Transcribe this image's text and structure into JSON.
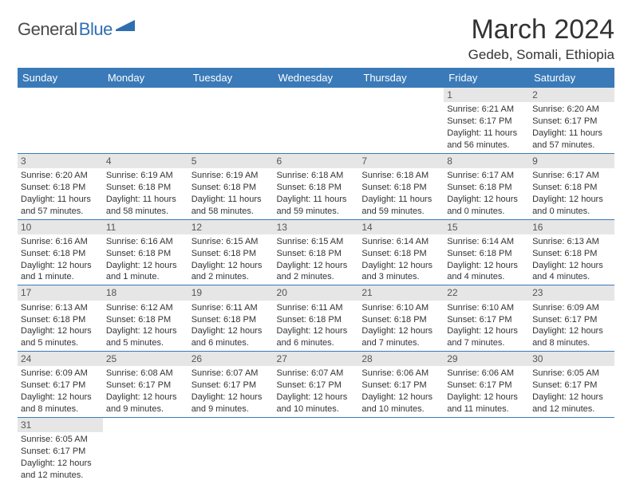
{
  "logo": {
    "text_dark": "General",
    "text_blue": "Blue",
    "icon_color": "#2f6fb0",
    "text_dark_color": "#4a4a4a"
  },
  "title": "March 2024",
  "location": "Gedeb, Somali, Ethiopia",
  "colors": {
    "header_bg": "#3a7ab8",
    "header_text": "#ffffff",
    "daynum_bg": "#e6e6e6",
    "daynum_text": "#555555",
    "cell_border": "#3a7ab8",
    "body_text": "#333333",
    "page_bg": "#ffffff"
  },
  "fonts": {
    "title_size": 34,
    "location_size": 17,
    "weekday_size": 13,
    "daynum_size": 12,
    "details_size": 11
  },
  "weekdays": [
    "Sunday",
    "Monday",
    "Tuesday",
    "Wednesday",
    "Thursday",
    "Friday",
    "Saturday"
  ],
  "weeks": [
    [
      {
        "empty": true
      },
      {
        "empty": true
      },
      {
        "empty": true
      },
      {
        "empty": true
      },
      {
        "empty": true
      },
      {
        "num": "1",
        "sunrise": "Sunrise: 6:21 AM",
        "sunset": "Sunset: 6:17 PM",
        "daylight": "Daylight: 11 hours and 56 minutes."
      },
      {
        "num": "2",
        "sunrise": "Sunrise: 6:20 AM",
        "sunset": "Sunset: 6:17 PM",
        "daylight": "Daylight: 11 hours and 57 minutes."
      }
    ],
    [
      {
        "num": "3",
        "sunrise": "Sunrise: 6:20 AM",
        "sunset": "Sunset: 6:18 PM",
        "daylight": "Daylight: 11 hours and 57 minutes."
      },
      {
        "num": "4",
        "sunrise": "Sunrise: 6:19 AM",
        "sunset": "Sunset: 6:18 PM",
        "daylight": "Daylight: 11 hours and 58 minutes."
      },
      {
        "num": "5",
        "sunrise": "Sunrise: 6:19 AM",
        "sunset": "Sunset: 6:18 PM",
        "daylight": "Daylight: 11 hours and 58 minutes."
      },
      {
        "num": "6",
        "sunrise": "Sunrise: 6:18 AM",
        "sunset": "Sunset: 6:18 PM",
        "daylight": "Daylight: 11 hours and 59 minutes."
      },
      {
        "num": "7",
        "sunrise": "Sunrise: 6:18 AM",
        "sunset": "Sunset: 6:18 PM",
        "daylight": "Daylight: 11 hours and 59 minutes."
      },
      {
        "num": "8",
        "sunrise": "Sunrise: 6:17 AM",
        "sunset": "Sunset: 6:18 PM",
        "daylight": "Daylight: 12 hours and 0 minutes."
      },
      {
        "num": "9",
        "sunrise": "Sunrise: 6:17 AM",
        "sunset": "Sunset: 6:18 PM",
        "daylight": "Daylight: 12 hours and 0 minutes."
      }
    ],
    [
      {
        "num": "10",
        "sunrise": "Sunrise: 6:16 AM",
        "sunset": "Sunset: 6:18 PM",
        "daylight": "Daylight: 12 hours and 1 minute."
      },
      {
        "num": "11",
        "sunrise": "Sunrise: 6:16 AM",
        "sunset": "Sunset: 6:18 PM",
        "daylight": "Daylight: 12 hours and 1 minute."
      },
      {
        "num": "12",
        "sunrise": "Sunrise: 6:15 AM",
        "sunset": "Sunset: 6:18 PM",
        "daylight": "Daylight: 12 hours and 2 minutes."
      },
      {
        "num": "13",
        "sunrise": "Sunrise: 6:15 AM",
        "sunset": "Sunset: 6:18 PM",
        "daylight": "Daylight: 12 hours and 2 minutes."
      },
      {
        "num": "14",
        "sunrise": "Sunrise: 6:14 AM",
        "sunset": "Sunset: 6:18 PM",
        "daylight": "Daylight: 12 hours and 3 minutes."
      },
      {
        "num": "15",
        "sunrise": "Sunrise: 6:14 AM",
        "sunset": "Sunset: 6:18 PM",
        "daylight": "Daylight: 12 hours and 4 minutes."
      },
      {
        "num": "16",
        "sunrise": "Sunrise: 6:13 AM",
        "sunset": "Sunset: 6:18 PM",
        "daylight": "Daylight: 12 hours and 4 minutes."
      }
    ],
    [
      {
        "num": "17",
        "sunrise": "Sunrise: 6:13 AM",
        "sunset": "Sunset: 6:18 PM",
        "daylight": "Daylight: 12 hours and 5 minutes."
      },
      {
        "num": "18",
        "sunrise": "Sunrise: 6:12 AM",
        "sunset": "Sunset: 6:18 PM",
        "daylight": "Daylight: 12 hours and 5 minutes."
      },
      {
        "num": "19",
        "sunrise": "Sunrise: 6:11 AM",
        "sunset": "Sunset: 6:18 PM",
        "daylight": "Daylight: 12 hours and 6 minutes."
      },
      {
        "num": "20",
        "sunrise": "Sunrise: 6:11 AM",
        "sunset": "Sunset: 6:18 PM",
        "daylight": "Daylight: 12 hours and 6 minutes."
      },
      {
        "num": "21",
        "sunrise": "Sunrise: 6:10 AM",
        "sunset": "Sunset: 6:18 PM",
        "daylight": "Daylight: 12 hours and 7 minutes."
      },
      {
        "num": "22",
        "sunrise": "Sunrise: 6:10 AM",
        "sunset": "Sunset: 6:17 PM",
        "daylight": "Daylight: 12 hours and 7 minutes."
      },
      {
        "num": "23",
        "sunrise": "Sunrise: 6:09 AM",
        "sunset": "Sunset: 6:17 PM",
        "daylight": "Daylight: 12 hours and 8 minutes."
      }
    ],
    [
      {
        "num": "24",
        "sunrise": "Sunrise: 6:09 AM",
        "sunset": "Sunset: 6:17 PM",
        "daylight": "Daylight: 12 hours and 8 minutes."
      },
      {
        "num": "25",
        "sunrise": "Sunrise: 6:08 AM",
        "sunset": "Sunset: 6:17 PM",
        "daylight": "Daylight: 12 hours and 9 minutes."
      },
      {
        "num": "26",
        "sunrise": "Sunrise: 6:07 AM",
        "sunset": "Sunset: 6:17 PM",
        "daylight": "Daylight: 12 hours and 9 minutes."
      },
      {
        "num": "27",
        "sunrise": "Sunrise: 6:07 AM",
        "sunset": "Sunset: 6:17 PM",
        "daylight": "Daylight: 12 hours and 10 minutes."
      },
      {
        "num": "28",
        "sunrise": "Sunrise: 6:06 AM",
        "sunset": "Sunset: 6:17 PM",
        "daylight": "Daylight: 12 hours and 10 minutes."
      },
      {
        "num": "29",
        "sunrise": "Sunrise: 6:06 AM",
        "sunset": "Sunset: 6:17 PM",
        "daylight": "Daylight: 12 hours and 11 minutes."
      },
      {
        "num": "30",
        "sunrise": "Sunrise: 6:05 AM",
        "sunset": "Sunset: 6:17 PM",
        "daylight": "Daylight: 12 hours and 12 minutes."
      }
    ],
    [
      {
        "num": "31",
        "sunrise": "Sunrise: 6:05 AM",
        "sunset": "Sunset: 6:17 PM",
        "daylight": "Daylight: 12 hours and 12 minutes."
      },
      {
        "empty": true
      },
      {
        "empty": true
      },
      {
        "empty": true
      },
      {
        "empty": true
      },
      {
        "empty": true
      },
      {
        "empty": true
      }
    ]
  ]
}
